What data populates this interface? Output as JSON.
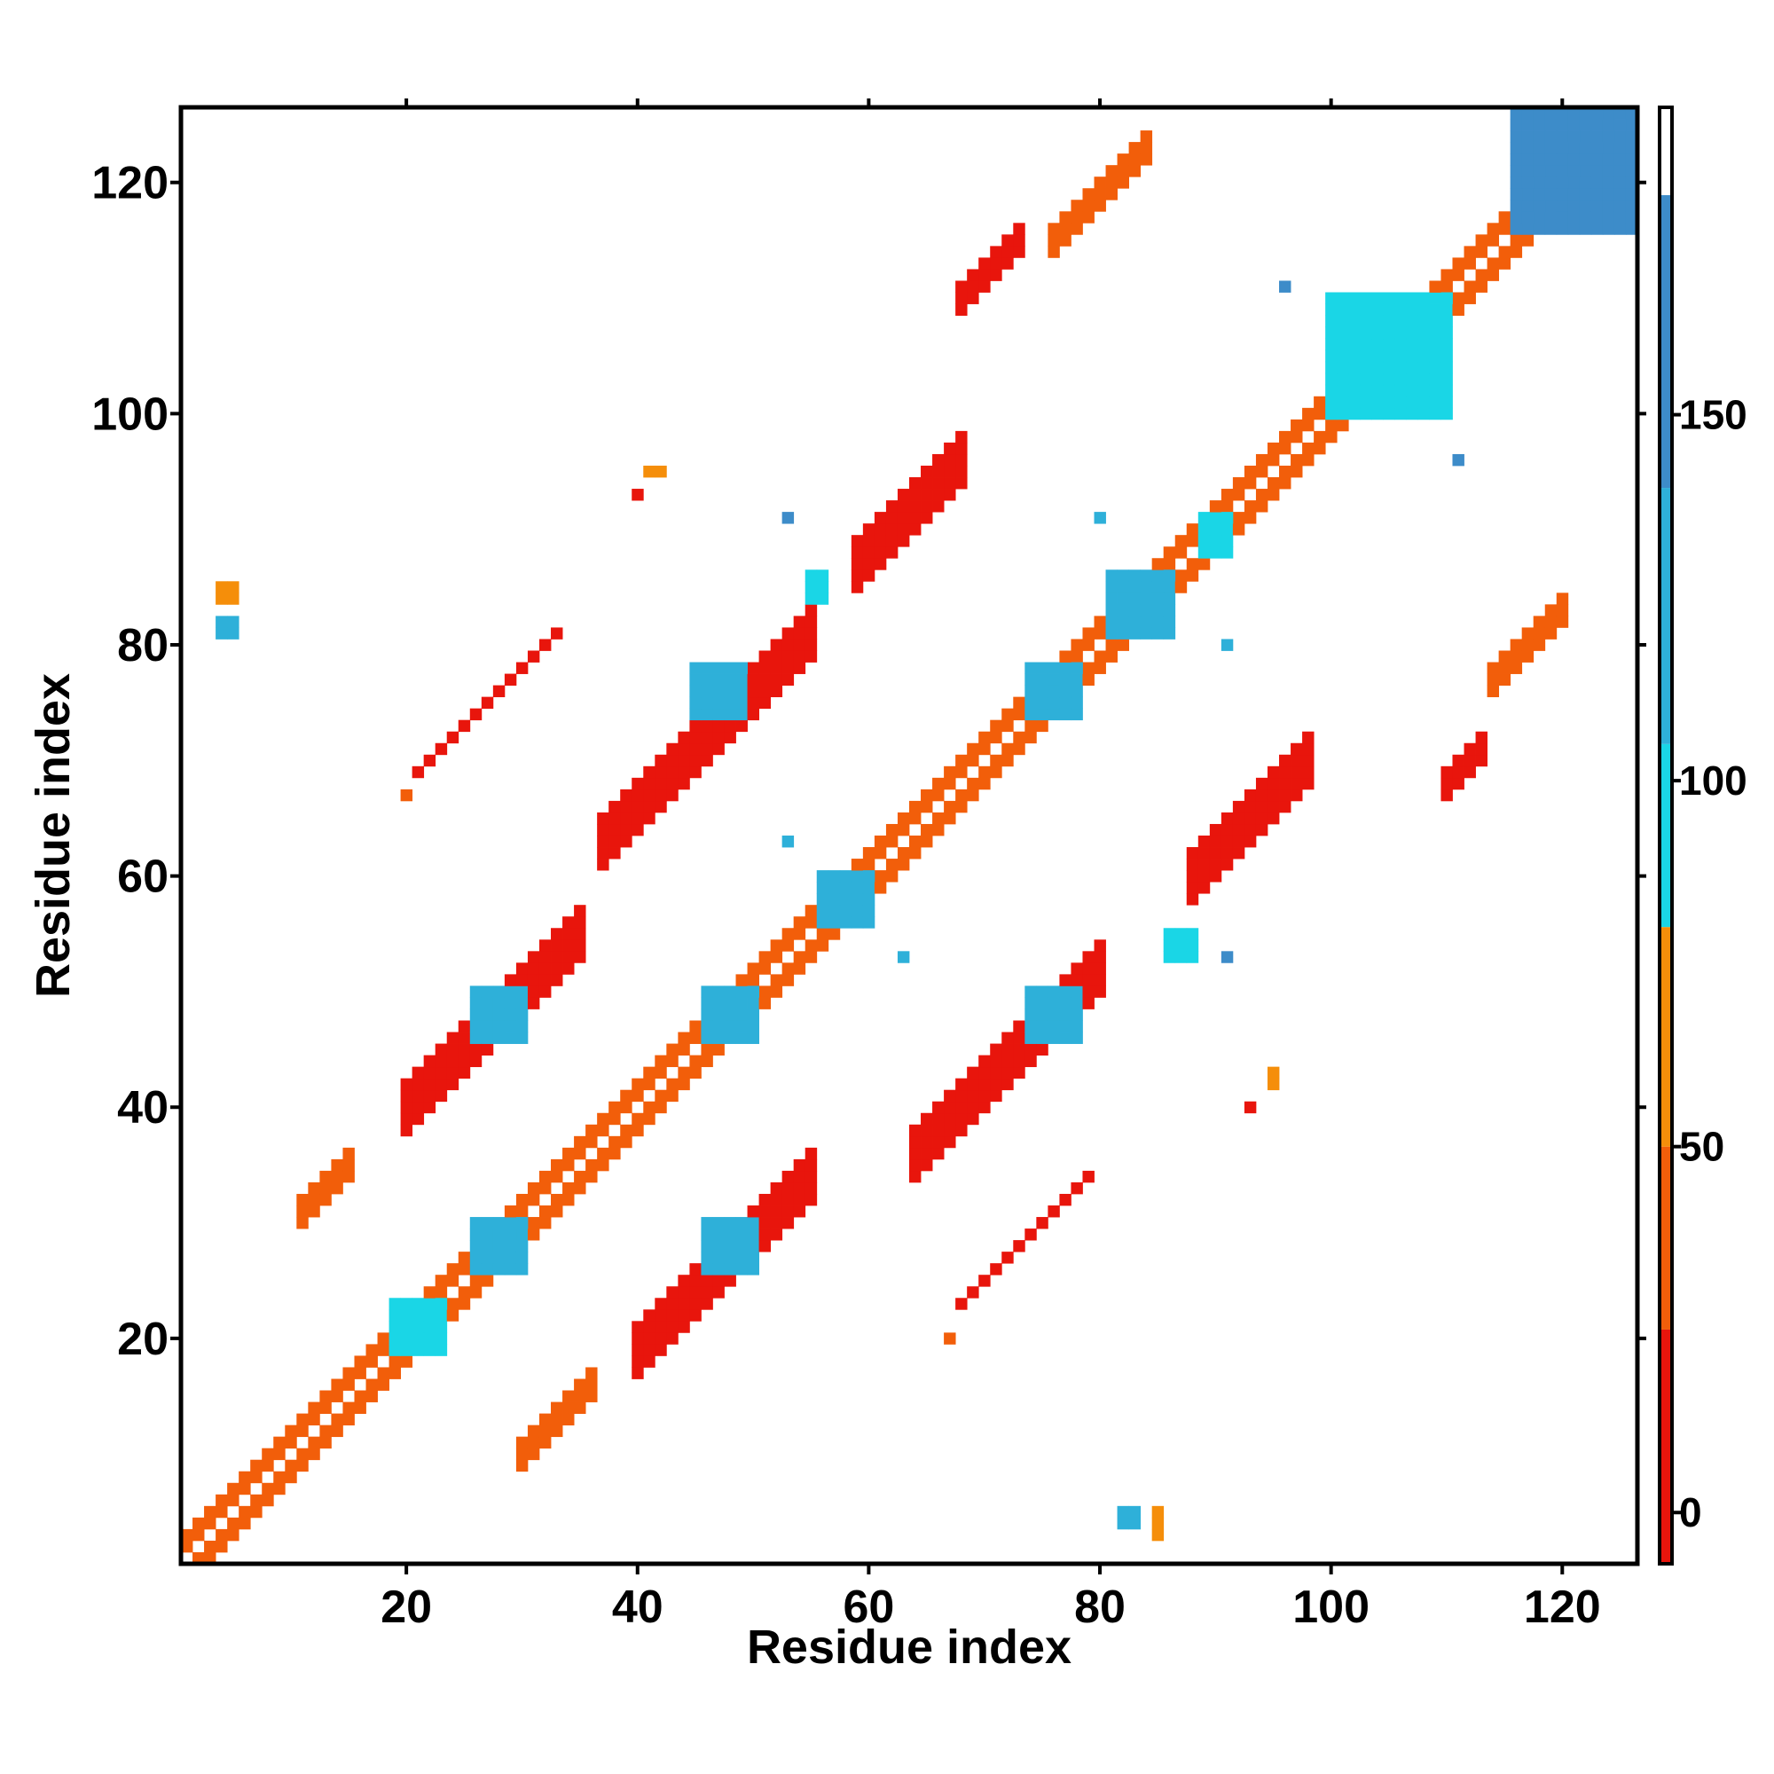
{
  "chart_data": {
    "type": "heatmap",
    "title": "",
    "xlabel": "Residue index",
    "ylabel": "Residue index",
    "xlim": [
      0.5,
      126.5
    ],
    "ylim": [
      0.5,
      126.5
    ],
    "x_ticks": [
      20,
      40,
      60,
      80,
      100,
      120
    ],
    "y_ticks": [
      20,
      40,
      60,
      80,
      100,
      120
    ],
    "grid": false,
    "colorbar": {
      "range": [
        -7,
        192
      ],
      "ticks": [
        0,
        50,
        100,
        150
      ],
      "bands": [
        {
          "from": -7,
          "to": 25,
          "color": "#e8150c"
        },
        {
          "from": 25,
          "to": 50,
          "color": "#f25e0a"
        },
        {
          "from": 50,
          "to": 80,
          "color": "#f58e0a"
        },
        {
          "from": 80,
          "to": 105,
          "color": "#1ad6e6"
        },
        {
          "from": 105,
          "to": 140,
          "color": "#2eb0d9"
        },
        {
          "from": 140,
          "to": 180,
          "color": "#3d8cc9"
        },
        {
          "from": 180,
          "to": 192,
          "color": "#ffffff"
        }
      ]
    },
    "contact_regions": [
      {
        "kind": "diagonal",
        "x0": 1,
        "x1": 126,
        "offset": 0,
        "half_width": 2,
        "value": 30
      },
      {
        "kind": "band",
        "x0": 37,
        "x1": 55,
        "offset": 26,
        "half_width": 2,
        "value": 10
      },
      {
        "kind": "band",
        "x0": 20,
        "x1": 35,
        "offset": 20,
        "half_width": 2,
        "value": 10
      },
      {
        "kind": "band",
        "x0": 40,
        "x1": 55,
        "offset": -21,
        "half_width": 2,
        "value": 10
      },
      {
        "kind": "band",
        "x0": 64,
        "x1": 80,
        "offset": -28,
        "half_width": 2,
        "value": 10
      },
      {
        "kind": "band",
        "x0": 88,
        "x1": 98,
        "offset": -28,
        "half_width": 2,
        "value": 10
      },
      {
        "kind": "band",
        "x0": 59,
        "x1": 68,
        "offset": 28,
        "half_width": 2,
        "value": 10
      },
      {
        "kind": "band",
        "x0": 68,
        "x1": 73,
        "offset": 42,
        "half_width": 1,
        "value": 10
      },
      {
        "kind": "band",
        "x0": 76,
        "x1": 84,
        "offset": 39,
        "half_width": 1,
        "value": 30
      },
      {
        "kind": "band",
        "x0": 114,
        "x1": 120,
        "offset": -37,
        "half_width": 1,
        "value": 30
      },
      {
        "kind": "band",
        "x0": 110,
        "x1": 113,
        "offset": -42,
        "half_width": 1,
        "value": 10
      },
      {
        "kind": "band",
        "x0": 11,
        "x1": 15,
        "offset": 20,
        "half_width": 1,
        "value": 40
      },
      {
        "kind": "band",
        "x0": 30,
        "x1": 36,
        "offset": -20,
        "half_width": 1,
        "value": 40
      },
      {
        "kind": "band",
        "x0": 21,
        "x1": 33,
        "offset": 48,
        "half_width": 0,
        "value": 10
      },
      {
        "kind": "band",
        "x0": 68,
        "x1": 79,
        "offset": -45,
        "half_width": 0,
        "value": 10
      },
      {
        "kind": "block",
        "x0": 116,
        "x1": 126,
        "y0": 116,
        "y1": 126,
        "value": 150
      },
      {
        "kind": "block",
        "x0": 56,
        "x1": 60,
        "y0": 56,
        "y1": 60,
        "value": 120
      },
      {
        "kind": "block",
        "x0": 81,
        "x1": 86,
        "y0": 81,
        "y1": 86,
        "value": 120
      },
      {
        "kind": "block",
        "x0": 74,
        "x1": 78,
        "y0": 74,
        "y1": 78,
        "value": 120
      },
      {
        "kind": "block",
        "x0": 26,
        "x1": 30,
        "y0": 26,
        "y1": 30,
        "value": 120
      },
      {
        "kind": "block",
        "x0": 46,
        "x1": 50,
        "y0": 46,
        "y1": 50,
        "value": 120
      },
      {
        "kind": "block",
        "x0": 45,
        "x1": 49,
        "y0": 74,
        "y1": 78,
        "value": 120
      },
      {
        "kind": "block",
        "x0": 26,
        "x1": 30,
        "y0": 46,
        "y1": 50,
        "value": 120
      },
      {
        "kind": "block",
        "x0": 74,
        "x1": 78,
        "y0": 46,
        "y1": 50,
        "value": 120
      },
      {
        "kind": "block",
        "x0": 46,
        "x1": 50,
        "y0": 26,
        "y1": 30,
        "value": 120
      },
      {
        "kind": "block",
        "x0": 19,
        "x1": 23,
        "y0": 19,
        "y1": 23,
        "value": 95
      },
      {
        "kind": "block",
        "x0": 100,
        "x1": 110,
        "y0": 100,
        "y1": 110,
        "value": 95
      },
      {
        "kind": "block",
        "x0": 89,
        "x1": 91,
        "y0": 88,
        "y1": 91,
        "value": 95
      },
      {
        "kind": "block",
        "x0": 86,
        "x1": 88,
        "y0": 53,
        "y1": 55,
        "value": 95
      },
      {
        "kind": "block",
        "x0": 55,
        "x1": 56,
        "y0": 84,
        "y1": 86,
        "value": 95
      },
      {
        "kind": "block",
        "x0": 4,
        "x1": 5,
        "y0": 81,
        "y1": 82,
        "value": 120
      },
      {
        "kind": "block",
        "x0": 4,
        "x1": 5,
        "y0": 84,
        "y1": 85,
        "value": 60
      },
      {
        "kind": "block",
        "x0": 82,
        "x1": 83,
        "y0": 4,
        "y1": 5,
        "value": 120
      },
      {
        "kind": "block",
        "x0": 85,
        "x1": 85,
        "y0": 3,
        "y1": 5,
        "value": 60
      },
      {
        "kind": "block",
        "x0": 95,
        "x1": 95,
        "y0": 42,
        "y1": 43,
        "value": 60
      },
      {
        "kind": "block",
        "x0": 41,
        "x1": 42,
        "y0": 95,
        "y1": 95,
        "value": 60
      },
      {
        "kind": "block",
        "x0": 40,
        "x1": 40,
        "y0": 93,
        "y1": 93,
        "value": 10
      },
      {
        "kind": "block",
        "x0": 93,
        "x1": 93,
        "y0": 40,
        "y1": 40,
        "value": 10
      },
      {
        "kind": "block",
        "x0": 20,
        "x1": 20,
        "y0": 67,
        "y1": 67,
        "value": 30
      },
      {
        "kind": "block",
        "x0": 67,
        "x1": 67,
        "y0": 20,
        "y1": 20,
        "value": 30
      },
      {
        "kind": "block",
        "x0": 96,
        "x1": 96,
        "y0": 111,
        "y1": 111,
        "value": 150
      },
      {
        "kind": "block",
        "x0": 111,
        "x1": 111,
        "y0": 96,
        "y1": 96,
        "value": 150
      },
      {
        "kind": "block",
        "x0": 53,
        "x1": 53,
        "y0": 91,
        "y1": 91,
        "value": 150
      },
      {
        "kind": "block",
        "x0": 91,
        "x1": 91,
        "y0": 53,
        "y1": 53,
        "value": 150
      },
      {
        "kind": "block",
        "x0": 63,
        "x1": 63,
        "y0": 53,
        "y1": 53,
        "value": 120
      },
      {
        "kind": "block",
        "x0": 53,
        "x1": 53,
        "y0": 63,
        "y1": 63,
        "value": 120
      },
      {
        "kind": "block",
        "x0": 80,
        "x1": 80,
        "y0": 91,
        "y1": 91,
        "value": 120
      },
      {
        "kind": "block",
        "x0": 91,
        "x1": 91,
        "y0": 80,
        "y1": 80,
        "value": 120
      }
    ]
  }
}
